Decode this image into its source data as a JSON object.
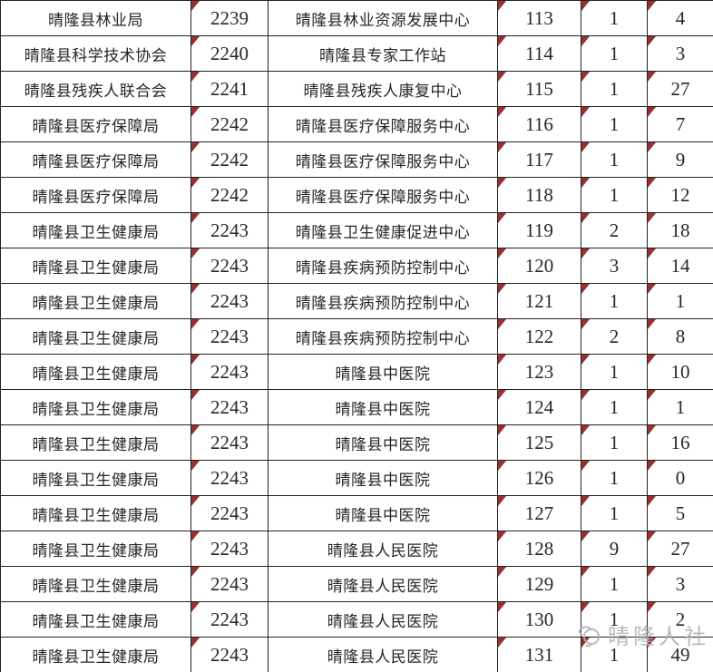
{
  "table": {
    "rows": [
      [
        "晴隆县林业局",
        "2239",
        "晴隆县林业资源发展中心",
        "113",
        "1",
        "4"
      ],
      [
        "晴隆县科学技术协会",
        "2240",
        "晴隆县专家工作站",
        "114",
        "1",
        "3"
      ],
      [
        "晴隆县残疾人联合会",
        "2241",
        "晴隆县残疾人康复中心",
        "115",
        "1",
        "27"
      ],
      [
        "晴隆县医疗保障局",
        "2242",
        "晴隆县医疗保障服务中心",
        "116",
        "1",
        "7"
      ],
      [
        "晴隆县医疗保障局",
        "2242",
        "晴隆县医疗保障服务中心",
        "117",
        "1",
        "9"
      ],
      [
        "晴隆县医疗保障局",
        "2242",
        "晴隆县医疗保障服务中心",
        "118",
        "1",
        "12"
      ],
      [
        "晴隆县卫生健康局",
        "2243",
        "晴隆县卫生健康促进中心",
        "119",
        "2",
        "18"
      ],
      [
        "晴隆县卫生健康局",
        "2243",
        "晴隆县疾病预防控制中心",
        "120",
        "3",
        "14"
      ],
      [
        "晴隆县卫生健康局",
        "2243",
        "晴隆县疾病预防控制中心",
        "121",
        "1",
        "1"
      ],
      [
        "晴隆县卫生健康局",
        "2243",
        "晴隆县疾病预防控制中心",
        "122",
        "2",
        "8"
      ],
      [
        "晴隆县卫生健康局",
        "2243",
        "晴隆县中医院",
        "123",
        "1",
        "10"
      ],
      [
        "晴隆县卫生健康局",
        "2243",
        "晴隆县中医院",
        "124",
        "1",
        "1"
      ],
      [
        "晴隆县卫生健康局",
        "2243",
        "晴隆县中医院",
        "125",
        "1",
        "16"
      ],
      [
        "晴隆县卫生健康局",
        "2243",
        "晴隆县中医院",
        "126",
        "1",
        "0"
      ],
      [
        "晴隆县卫生健康局",
        "2243",
        "晴隆县中医院",
        "127",
        "1",
        "5"
      ],
      [
        "晴隆县卫生健康局",
        "2243",
        "晴隆县人民医院",
        "128",
        "9",
        "27"
      ],
      [
        "晴隆县卫生健康局",
        "2243",
        "晴隆县人民医院",
        "129",
        "1",
        "3"
      ],
      [
        "晴隆县卫生健康局",
        "2243",
        "晴隆县人民医院",
        "130",
        "1",
        "2"
      ],
      [
        "晴隆县卫生健康局",
        "2243",
        "晴隆县人民医院",
        "131",
        "1",
        "49"
      ]
    ],
    "marker_columns": [
      1,
      3,
      4,
      5
    ]
  },
  "watermark": {
    "text": "晴隆人社"
  },
  "colors": {
    "grid_line": "#222222",
    "marker_red": "#97302e",
    "text": "#262626",
    "watermark_gray": "#b3b3b3"
  }
}
